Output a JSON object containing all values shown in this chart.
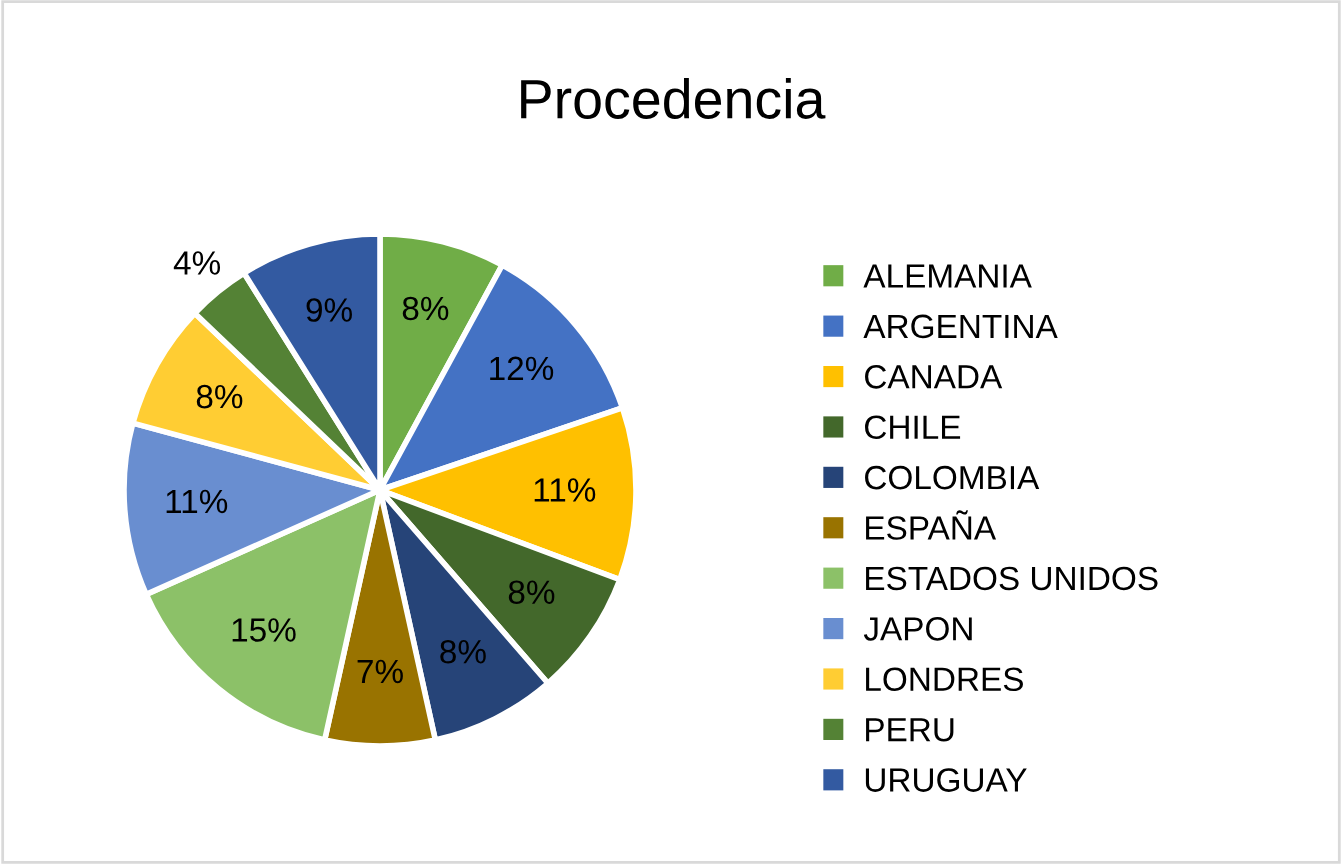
{
  "chart_data": {
    "type": "pie",
    "title": "Procedencia",
    "categories": [
      "ALEMANIA",
      "ARGENTINA",
      "CANADA",
      "CHILE",
      "COLOMBIA",
      "ESPAÑA",
      "ESTADOS UNIDOS",
      "JAPON",
      "LONDRES",
      "PERU",
      "URUGUAY"
    ],
    "values": [
      8,
      12,
      11,
      8,
      8,
      7,
      15,
      11,
      8,
      4,
      9
    ],
    "colors": [
      "#70ad47",
      "#4472c4",
      "#ffc000",
      "#43682b",
      "#264478",
      "#997300",
      "#8cc168",
      "#698ed0",
      "#ffcd33",
      "#548235",
      "#335aa1"
    ],
    "value_labels": [
      "8%",
      "12%",
      "11%",
      "8%",
      "8%",
      "7%",
      "15%",
      "11%",
      "8%",
      "4%",
      "9%"
    ],
    "legend": "right"
  }
}
